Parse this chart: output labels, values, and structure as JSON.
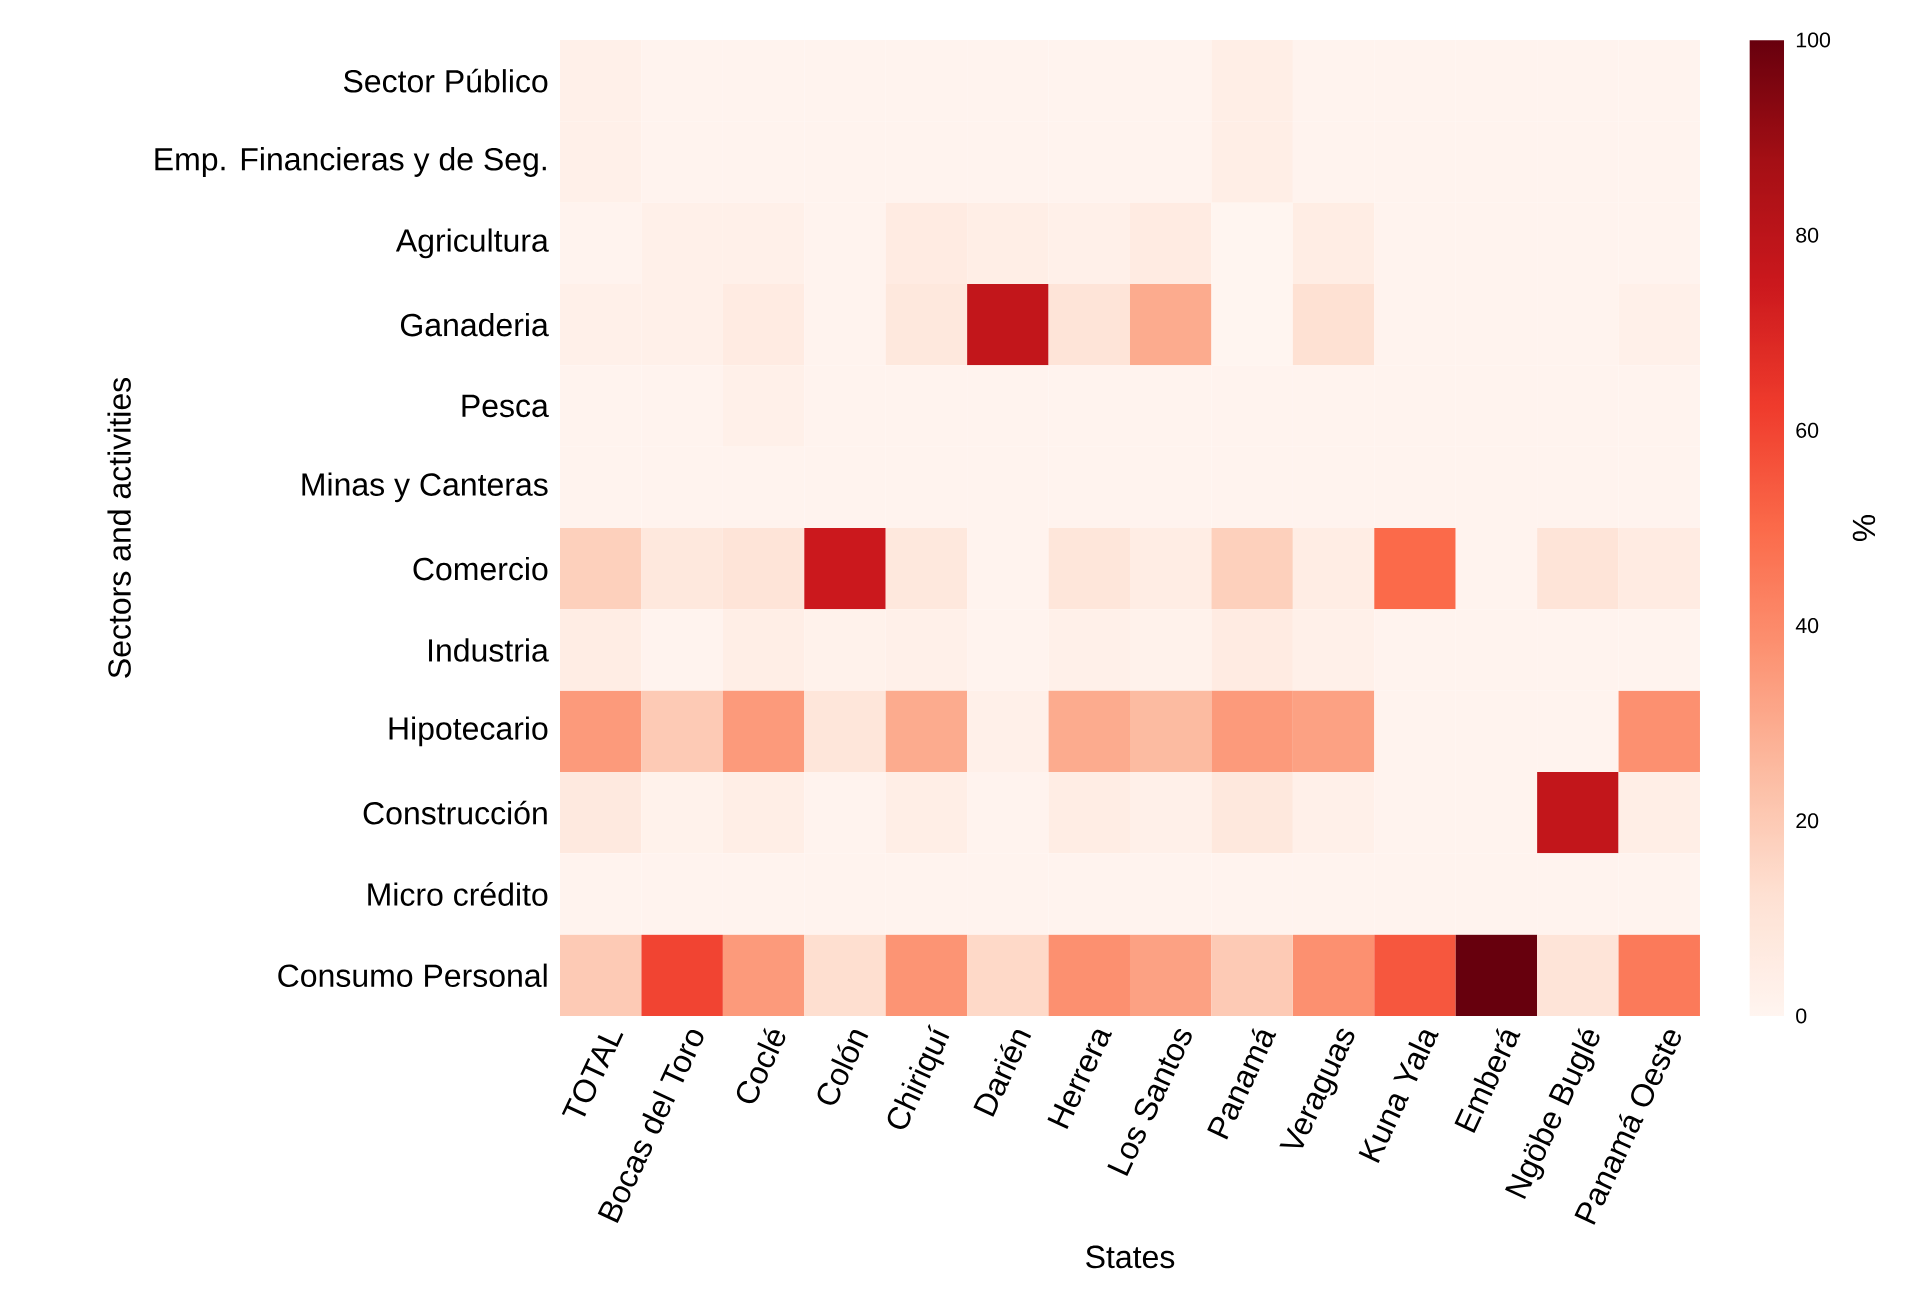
{
  "chart_data": {
    "type": "heatmap",
    "xlabel": "States",
    "ylabel": "Sectors and activities",
    "clabel": "%",
    "categories": [
      "TOTAL",
      "Bocas del Toro",
      "Coclé",
      "Colón",
      "Chiriquí",
      "Darién",
      "Herrera",
      "Los Santos",
      "Panamá",
      "Veraguas",
      "Kuna Yala",
      "Emberá",
      "Ngöbe Buglé",
      "Panamá Oeste"
    ],
    "y_categories": [
      "Sector Público",
      "Emp. Financieras y de Seg.",
      "Agricultura",
      "Ganaderia",
      "Pesca",
      "Minas y Canteras",
      "Comercio",
      "Industria",
      "Hipotecario",
      "Construcción",
      "Micro crédito",
      "Consumo Personal"
    ],
    "cells": [
      [
        3,
        1,
        1,
        1,
        1,
        1,
        1,
        1,
        4,
        1,
        1,
        1,
        1,
        1
      ],
      [
        3,
        1,
        1,
        1,
        1,
        1,
        1,
        1,
        4,
        1,
        1,
        1,
        1,
        1
      ],
      [
        1,
        3,
        3,
        1,
        6,
        4,
        3,
        6,
        0,
        5,
        1,
        1,
        1,
        1
      ],
      [
        3,
        3,
        6,
        1,
        8,
        78,
        10,
        30,
        0,
        12,
        1,
        1,
        1,
        3
      ],
      [
        1,
        1,
        3,
        1,
        1,
        1,
        1,
        1,
        1,
        1,
        1,
        1,
        1,
        1
      ],
      [
        1,
        1,
        1,
        1,
        1,
        1,
        1,
        1,
        1,
        1,
        1,
        1,
        1,
        1
      ],
      [
        18,
        8,
        10,
        75,
        8,
        1,
        9,
        5,
        18,
        5,
        50,
        1,
        10,
        6
      ],
      [
        5,
        1,
        4,
        2,
        3,
        1,
        3,
        2,
        6,
        3,
        1,
        1,
        1,
        1
      ],
      [
        35,
        20,
        35,
        9,
        30,
        3,
        30,
        25,
        35,
        33,
        1,
        1,
        1,
        38
      ],
      [
        7,
        2,
        4,
        1,
        4,
        1,
        5,
        3,
        8,
        3,
        1,
        1,
        78,
        4
      ],
      [
        1,
        1,
        1,
        1,
        1,
        1,
        1,
        1,
        1,
        1,
        1,
        1,
        1,
        1
      ],
      [
        20,
        60,
        35,
        13,
        37,
        15,
        38,
        33,
        20,
        38,
        55,
        100,
        10,
        45
      ]
    ],
    "clim": [
      0,
      100
    ],
    "cticks": [
      0,
      20,
      40,
      60,
      80,
      100
    ]
  }
}
